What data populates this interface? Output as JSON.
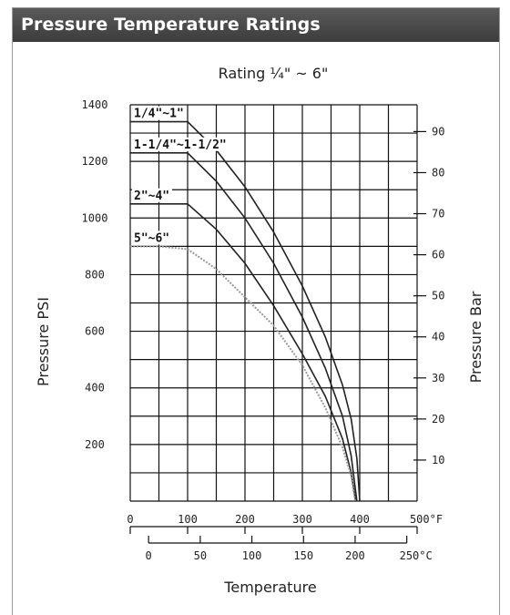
{
  "header": {
    "title": "Pressure Temperature Ratings"
  },
  "chart_data": {
    "type": "line",
    "title": "Rating ¼\" ~ 6\"",
    "xlabel": "Temperature",
    "ylabel": "Pressure PSI",
    "y2label": "Pressure Bar",
    "xlim": [
      0,
      500
    ],
    "ylim": [
      0,
      1400
    ],
    "x_unit": "°F",
    "x2_unit": "°C",
    "x_ticks": [
      "0",
      "100",
      "200",
      "300",
      "400",
      "500"
    ],
    "x2_ticks": [
      "0",
      "50",
      "100",
      "150",
      "200",
      "250"
    ],
    "y_ticks": [
      "200",
      "400",
      "600",
      "800",
      "1000",
      "1200",
      "1400"
    ],
    "y2_ticks": [
      "10",
      "20",
      "30",
      "40",
      "50",
      "60",
      "70",
      "80",
      "90"
    ],
    "grid": true,
    "series": [
      {
        "name": "1/4\"~1\"",
        "color": "#222222",
        "dashed": false,
        "x": [
          0,
          100,
          150,
          200,
          250,
          300,
          340,
          370,
          385,
          395,
          400
        ],
        "y": [
          1340,
          1340,
          1240,
          1110,
          950,
          760,
          580,
          410,
          290,
          150,
          0
        ]
      },
      {
        "name": "1-1/4\"~1-1/2\"",
        "color": "#222222",
        "dashed": false,
        "x": [
          0,
          100,
          150,
          200,
          250,
          300,
          340,
          370,
          385,
          395
        ],
        "y": [
          1230,
          1230,
          1130,
          1000,
          840,
          650,
          470,
          300,
          160,
          0
        ]
      },
      {
        "name": "2\"~4\"",
        "color": "#222222",
        "dashed": false,
        "x": [
          0,
          100,
          150,
          200,
          250,
          300,
          340,
          370,
          385,
          393
        ],
        "y": [
          1050,
          1050,
          960,
          840,
          690,
          520,
          370,
          220,
          100,
          0
        ]
      },
      {
        "name": "5\"~6\"",
        "color": "#999999",
        "dashed": true,
        "x": [
          0,
          50,
          100,
          150,
          200,
          250,
          300,
          340,
          370,
          385,
          392
        ],
        "y": [
          900,
          900,
          890,
          820,
          720,
          620,
          480,
          330,
          190,
          90,
          0
        ]
      }
    ]
  }
}
